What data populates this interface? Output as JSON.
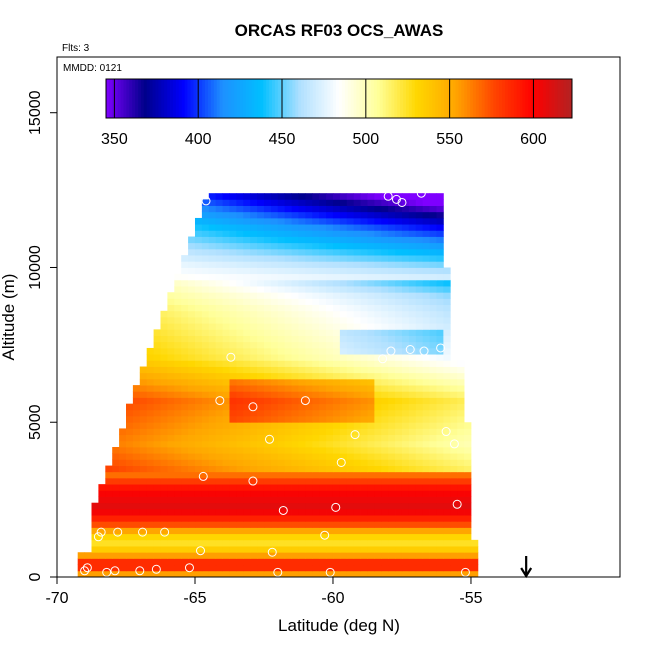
{
  "chart_data": {
    "type": "heatmap",
    "title": "ORCAS RF03 OCS_AWAS",
    "notes": [
      "Flts: 3",
      "MMDD: 0121"
    ],
    "xlabel": "Latitude (deg N)",
    "ylabel": "Altitude (m)",
    "xlim": [
      -70,
      -49.6
    ],
    "ylim": [
      0,
      16800
    ],
    "x_ticks": [
      -70,
      -65,
      -60,
      -55
    ],
    "y_ticks": [
      0,
      5000,
      10000,
      15000
    ],
    "x_tick_labels": [
      "-70",
      "-65",
      "-60",
      "-55"
    ],
    "y_tick_labels": [
      "0",
      "5000",
      "10000",
      "15000"
    ],
    "colorbar": {
      "range": [
        345,
        623
      ],
      "ticks": [
        350,
        400,
        450,
        500,
        550,
        600
      ],
      "tick_labels": [
        "350",
        "400",
        "450",
        "500",
        "550",
        "600"
      ],
      "colors": [
        "#7f00ff",
        "#00008b",
        "#0000ff",
        "#1e90ff",
        "#00bfff",
        "#b0e0ff",
        "#ffffff",
        "#ffff99",
        "#ffd700",
        "#ffa500",
        "#ff4500",
        "#ff0000",
        "#b22222"
      ],
      "placement": "top inside plot"
    },
    "grid": false,
    "arrow_marker": {
      "x": -53,
      "direction": "down"
    },
    "field": {
      "lat_range": [
        -69.4,
        -54.8
      ],
      "alt_range": [
        0,
        12600
      ],
      "profile": [
        {
          "alt": 0,
          "value": 555
        },
        {
          "alt": 300,
          "value": 600
        },
        {
          "alt": 700,
          "value": 540
        },
        {
          "alt": 1100,
          "value": 520
        },
        {
          "alt": 1600,
          "value": 575
        },
        {
          "alt": 2100,
          "value": 610
        },
        {
          "alt": 2700,
          "value": 600
        },
        {
          "alt": 3300,
          "value": 560
        },
        {
          "alt": 4200,
          "value": 545
        },
        {
          "alt": 5600,
          "value": 560
        },
        {
          "alt": 7000,
          "value": 520
        },
        {
          "alt": 8500,
          "value": 505
        },
        {
          "alt": 10000,
          "value": 480
        },
        {
          "alt": 11200,
          "value": 450
        },
        {
          "alt": 12300,
          "value": 410
        }
      ]
    },
    "samples": [
      {
        "lat": -69.0,
        "alt": 200
      },
      {
        "lat": -68.9,
        "alt": 300
      },
      {
        "lat": -68.2,
        "alt": 150
      },
      {
        "lat": -67.9,
        "alt": 200
      },
      {
        "lat": -67.0,
        "alt": 200
      },
      {
        "lat": -66.4,
        "alt": 250
      },
      {
        "lat": -65.2,
        "alt": 300
      },
      {
        "lat": -62.0,
        "alt": 150
      },
      {
        "lat": -60.1,
        "alt": 150
      },
      {
        "lat": -55.2,
        "alt": 150
      },
      {
        "lat": -64.8,
        "alt": 850
      },
      {
        "lat": -62.2,
        "alt": 800
      },
      {
        "lat": -60.3,
        "alt": 1350
      },
      {
        "lat": -67.8,
        "alt": 1450
      },
      {
        "lat": -66.9,
        "alt": 1450
      },
      {
        "lat": -66.1,
        "alt": 1450
      },
      {
        "lat": -68.4,
        "alt": 1450
      },
      {
        "lat": -68.5,
        "alt": 1300
      },
      {
        "lat": -61.8,
        "alt": 2150
      },
      {
        "lat": -59.9,
        "alt": 2250
      },
      {
        "lat": -55.5,
        "alt": 2350
      },
      {
        "lat": -62.9,
        "alt": 3100
      },
      {
        "lat": -64.7,
        "alt": 3250
      },
      {
        "lat": -59.7,
        "alt": 3700
      },
      {
        "lat": -62.3,
        "alt": 4450
      },
      {
        "lat": -55.9,
        "alt": 4700
      },
      {
        "lat": -55.6,
        "alt": 4300
      },
      {
        "lat": -64.1,
        "alt": 5700
      },
      {
        "lat": -62.9,
        "alt": 5500
      },
      {
        "lat": -61.0,
        "alt": 5700
      },
      {
        "lat": -59.2,
        "alt": 4600
      },
      {
        "lat": -58.2,
        "alt": 7050
      },
      {
        "lat": -57.9,
        "alt": 7300
      },
      {
        "lat": -57.2,
        "alt": 7350
      },
      {
        "lat": -56.7,
        "alt": 7300
      },
      {
        "lat": -56.1,
        "alt": 7400
      },
      {
        "lat": -63.7,
        "alt": 7100
      },
      {
        "lat": -64.6,
        "alt": 12150
      },
      {
        "lat": -57.7,
        "alt": 12200
      },
      {
        "lat": -58.0,
        "alt": 12300
      },
      {
        "lat": -57.5,
        "alt": 12100
      },
      {
        "lat": -56.1,
        "alt": 12550
      },
      {
        "lat": -56.8,
        "alt": 12400
      }
    ]
  }
}
